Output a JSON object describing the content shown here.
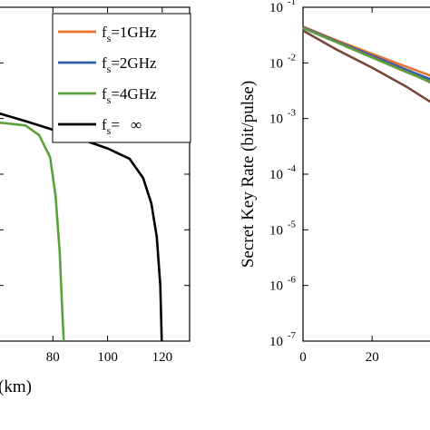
{
  "chart_data": [
    {
      "type": "line",
      "xlabel": "(km)",
      "ylabel": "",
      "xticks": [
        "80",
        "100",
        "120"
      ],
      "xlim": [
        60,
        130
      ],
      "yscale": "log",
      "ylim": [
        1e-07,
        0.1
      ],
      "legend": {
        "placement": "top-right",
        "entries": [
          {
            "prefix": "f",
            "sub": "s",
            "suffix": "=1GHz",
            "color": "#e8732b"
          },
          {
            "prefix": "f",
            "sub": "s",
            "suffix": "=2GHz",
            "color": "#2b5fa8"
          },
          {
            "prefix": "f",
            "sub": "s",
            "suffix": "=4GHz",
            "color": "#5aa03c"
          },
          {
            "prefix": "f",
            "sub": "s",
            "suffix": "=",
            "infinity": "∞",
            "color": "#000000"
          }
        ]
      },
      "series": [
        {
          "color": "#5aa03c",
          "points": [
            [
              60,
              0.00085
            ],
            [
              70,
              0.00075
            ],
            [
              75,
              0.0005
            ],
            [
              79,
              0.0002
            ],
            [
              81,
              4e-05
            ],
            [
              82.5,
              4e-06
            ],
            [
              83.5,
              3e-07
            ],
            [
              84,
              1e-07
            ]
          ]
        },
        {
          "color": "#000000",
          "points": [
            [
              60,
              0.00125
            ],
            [
              70,
              0.0009
            ],
            [
              80,
              0.00063
            ],
            [
              90,
              0.00043
            ],
            [
              100,
              0.00029
            ],
            [
              108,
              0.00019
            ],
            [
              113,
              8.5e-05
            ],
            [
              116,
              3e-05
            ],
            [
              118,
              7.5e-06
            ],
            [
              119.3,
              1e-06
            ],
            [
              119.8,
              1e-07
            ]
          ]
        }
      ]
    },
    {
      "type": "line",
      "xlabel": "",
      "ylabel": "Secret Key Rate (bit/pulse)",
      "xticks": [
        "0",
        "20",
        "4"
      ],
      "yticks": [
        {
          "base": "10",
          "exp": "-1"
        },
        {
          "base": "10",
          "exp": "-2"
        },
        {
          "base": "10",
          "exp": "-3"
        },
        {
          "base": "10",
          "exp": "-4"
        },
        {
          "base": "10",
          "exp": "-5"
        },
        {
          "base": "10",
          "exp": "-6"
        },
        {
          "base": "10",
          "exp": "-7"
        }
      ],
      "xlim": [
        0,
        42
      ],
      "yscale": "log",
      "ylim": [
        1e-07,
        0.1
      ],
      "series": [
        {
          "color": "#e8732b",
          "points": [
            [
              0,
              0.045
            ],
            [
              10,
              0.025
            ],
            [
              20,
              0.0145
            ],
            [
              30,
              0.0085
            ],
            [
              42,
              0.0045
            ]
          ]
        },
        {
          "color": "#2b5fa8",
          "points": [
            [
              0,
              0.044
            ],
            [
              10,
              0.024
            ],
            [
              20,
              0.0135
            ],
            [
              30,
              0.0075
            ],
            [
              42,
              0.0038
            ]
          ]
        },
        {
          "color": "#a0508c",
          "points": [
            [
              0,
              0.043
            ],
            [
              10,
              0.0235
            ],
            [
              20,
              0.0128
            ],
            [
              30,
              0.007
            ],
            [
              42,
              0.0032
            ]
          ]
        },
        {
          "color": "#5aa03c",
          "points": [
            [
              0,
              0.042
            ],
            [
              10,
              0.023
            ],
            [
              20,
              0.0125
            ],
            [
              30,
              0.0068
            ],
            [
              42,
              0.0034
            ]
          ]
        },
        {
          "color": "#7a4638",
          "points": [
            [
              0,
              0.038
            ],
            [
              10,
              0.017
            ],
            [
              20,
              0.0082
            ],
            [
              30,
              0.0037
            ],
            [
              38,
              0.0018
            ],
            [
              40,
              0.0013
            ],
            [
              42,
              0.0009
            ]
          ]
        }
      ]
    }
  ]
}
